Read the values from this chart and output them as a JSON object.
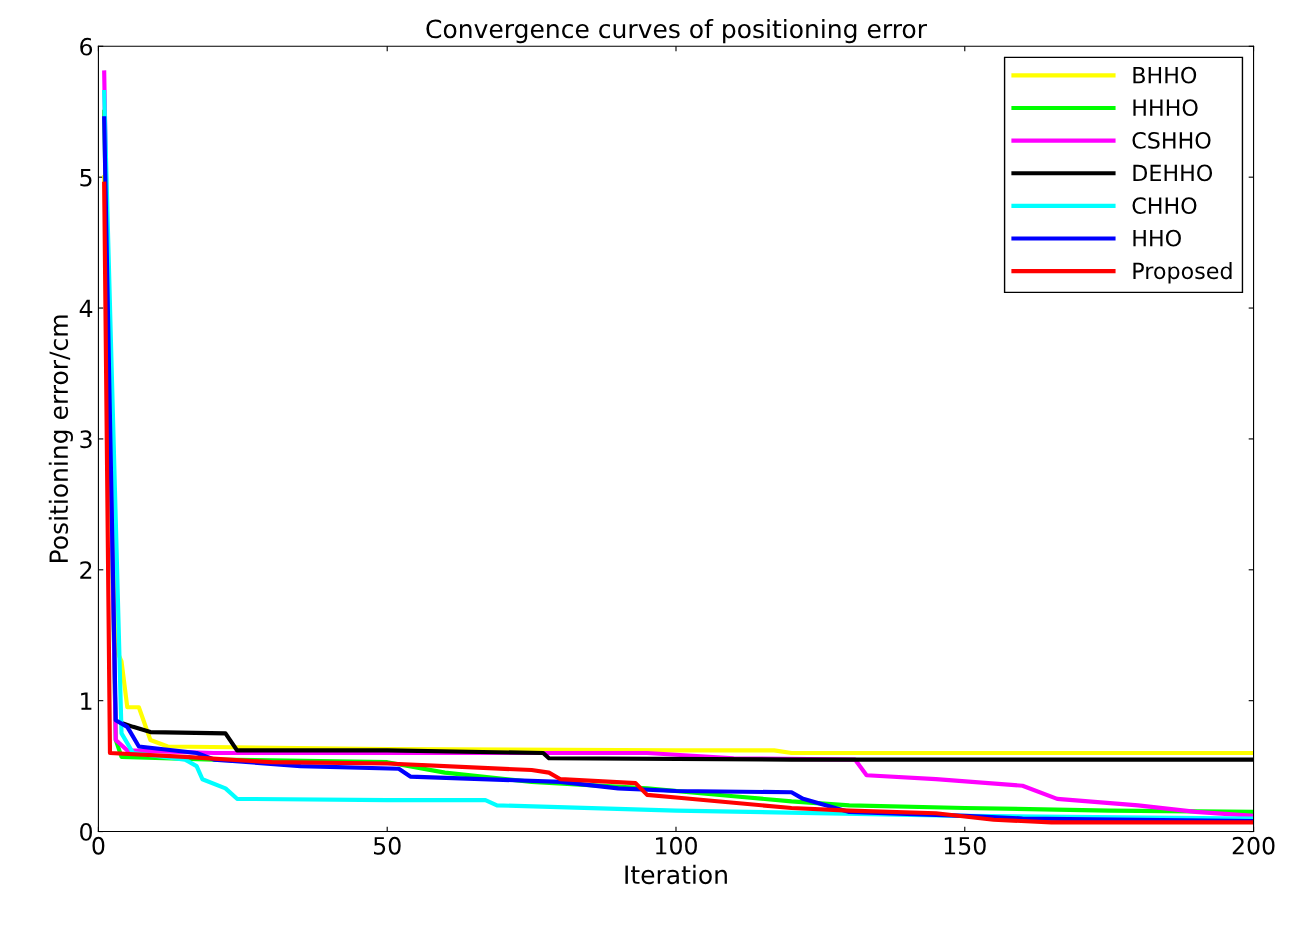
{
  "chart_data": {
    "type": "line",
    "title": "Convergence curves of positioning error",
    "xlabel": "Iteration",
    "ylabel": "Positioning error/cm",
    "xlim": [
      0,
      200
    ],
    "ylim": [
      0,
      6
    ],
    "xticks": [
      0,
      50,
      100,
      150,
      200
    ],
    "yticks": [
      0,
      1,
      2,
      3,
      4,
      5,
      6
    ],
    "grid": false,
    "legend": "top right",
    "marker": "none",
    "line_style": "solid",
    "series": [
      {
        "name": "BHHO",
        "color": "#ffff00",
        "x": [
          1,
          3,
          4,
          5,
          7,
          9,
          12,
          50,
          100,
          117,
          120,
          200
        ],
        "values": [
          5.0,
          1.4,
          1.3,
          0.95,
          0.95,
          0.7,
          0.65,
          0.63,
          0.62,
          0.62,
          0.6,
          0.6
        ]
      },
      {
        "name": "HHHO",
        "color": "#00ff00",
        "x": [
          1,
          3,
          4,
          20,
          50,
          60,
          75,
          95,
          110,
          120,
          130,
          150,
          175,
          200
        ],
        "values": [
          5.5,
          0.7,
          0.57,
          0.55,
          0.53,
          0.45,
          0.38,
          0.33,
          0.27,
          0.23,
          0.2,
          0.18,
          0.16,
          0.15
        ]
      },
      {
        "name": "CSHHO",
        "color": "#ff00ff",
        "x": [
          1,
          3,
          5,
          20,
          95,
          110,
          131,
          133,
          145,
          160,
          166,
          180,
          190,
          200
        ],
        "values": [
          5.8,
          0.7,
          0.62,
          0.6,
          0.6,
          0.56,
          0.55,
          0.43,
          0.4,
          0.35,
          0.25,
          0.2,
          0.15,
          0.12
        ]
      },
      {
        "name": "DEHHO",
        "color": "#000000",
        "x": [
          4,
          6,
          9,
          22,
          24,
          50,
          77,
          78,
          120,
          200
        ],
        "values": [
          0.83,
          0.8,
          0.76,
          0.75,
          0.62,
          0.62,
          0.6,
          0.56,
          0.55,
          0.55
        ]
      },
      {
        "name": "CHHO",
        "color": "#00ffff",
        "x": [
          1,
          4,
          6,
          15,
          17,
          18,
          22,
          24,
          50,
          67,
          69,
          100,
          150,
          200
        ],
        "values": [
          5.65,
          0.75,
          0.6,
          0.55,
          0.5,
          0.4,
          0.33,
          0.25,
          0.24,
          0.24,
          0.2,
          0.16,
          0.12,
          0.1
        ]
      },
      {
        "name": "HHO",
        "color": "#0000ff",
        "x": [
          1,
          3,
          5,
          7,
          17,
          20,
          35,
          52,
          54,
          80,
          90,
          100,
          120,
          122,
          130,
          150,
          160,
          200
        ],
        "values": [
          5.45,
          0.85,
          0.8,
          0.65,
          0.6,
          0.55,
          0.5,
          0.48,
          0.42,
          0.38,
          0.33,
          0.31,
          0.3,
          0.25,
          0.15,
          0.12,
          0.1,
          0.08
        ]
      },
      {
        "name": "Proposed",
        "color": "#ff0000",
        "x": [
          1,
          2,
          15,
          30,
          50,
          75,
          78,
          80,
          93,
          95,
          100,
          110,
          120,
          130,
          145,
          155,
          165,
          200
        ],
        "values": [
          4.95,
          0.6,
          0.57,
          0.53,
          0.52,
          0.47,
          0.45,
          0.4,
          0.37,
          0.28,
          0.26,
          0.22,
          0.18,
          0.16,
          0.14,
          0.09,
          0.07,
          0.07
        ]
      }
    ]
  }
}
